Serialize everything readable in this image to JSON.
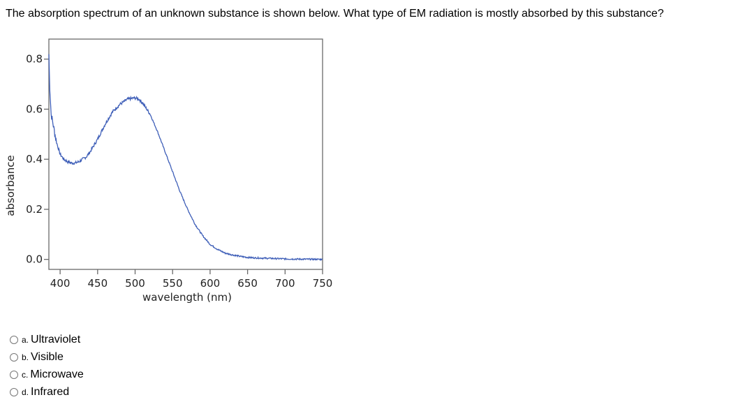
{
  "question": {
    "text": "The absorption spectrum of an unknown substance is shown below. What type of EM radiation is mostly absorbed by this substance?"
  },
  "chart_data": {
    "type": "line",
    "xlabel": "wavelength (nm)",
    "ylabel": "absorbance",
    "xlim": [
      385,
      750
    ],
    "ylim": [
      -0.04,
      0.88
    ],
    "x_ticks": [
      400,
      450,
      500,
      550,
      600,
      650,
      700,
      750
    ],
    "y_ticks": [
      0.0,
      0.2,
      0.4,
      0.6,
      0.8
    ],
    "y_tick_labels": [
      "0.0",
      "0.2",
      "0.4",
      "0.6",
      "0.8"
    ],
    "grid": false,
    "line_color": "#3f5fb8",
    "series": [
      {
        "name": "",
        "x": [
          385,
          386,
          388,
          390,
          395,
          400,
          405,
          410,
          415,
          420,
          425,
          430,
          435,
          440,
          450,
          460,
          470,
          480,
          490,
          500,
          505,
          510,
          520,
          530,
          540,
          550,
          560,
          570,
          580,
          590,
          600,
          610,
          620,
          630,
          640,
          650,
          660,
          680,
          700,
          720,
          750
        ],
        "y": [
          0.82,
          0.7,
          0.58,
          0.55,
          0.47,
          0.42,
          0.4,
          0.39,
          0.385,
          0.385,
          0.39,
          0.4,
          0.41,
          0.43,
          0.48,
          0.54,
          0.59,
          0.62,
          0.64,
          0.645,
          0.64,
          0.625,
          0.58,
          0.51,
          0.43,
          0.35,
          0.27,
          0.2,
          0.14,
          0.095,
          0.06,
          0.04,
          0.025,
          0.018,
          0.012,
          0.008,
          0.006,
          0.004,
          0.002,
          0.001,
          0.0
        ]
      }
    ]
  },
  "options": [
    {
      "letter": "a.",
      "label": "Ultraviolet"
    },
    {
      "letter": "b.",
      "label": "Visible"
    },
    {
      "letter": "c.",
      "label": "Microwave"
    },
    {
      "letter": "d.",
      "label": "Infrared"
    }
  ]
}
